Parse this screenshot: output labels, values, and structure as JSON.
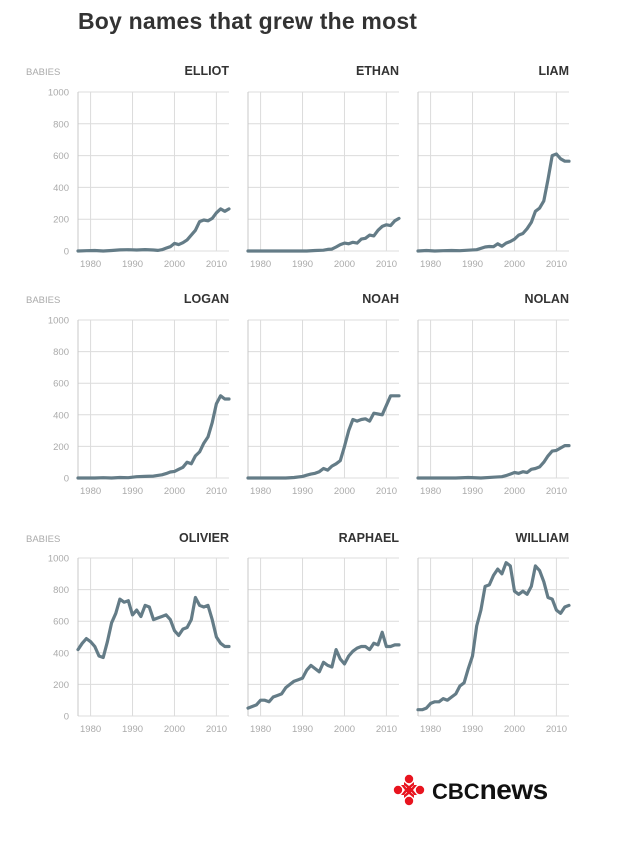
{
  "title": "Boy names that grew the most",
  "axis_label": "BABIES",
  "brand": {
    "prefix": "CBC",
    "suffix": "news",
    "gem_color": "#e8141f"
  },
  "colors": {
    "line": "#647c87",
    "grid": "#dcdcdc",
    "frame": "#c8c8c8"
  },
  "chart_data": [
    {
      "type": "line",
      "title": "ELLIOT",
      "ylabel": "BABIES",
      "xlim": [
        1977,
        2013
      ],
      "ylim": [
        0,
        1000
      ],
      "xticks": [
        1980,
        1990,
        2000,
        2010
      ],
      "yticks": [
        0,
        200,
        400,
        600,
        800,
        1000
      ],
      "series": [
        {
          "x": [
            1977,
            1979,
            1981,
            1983,
            1985,
            1987,
            1989,
            1991,
            1993,
            1995,
            1996,
            1997,
            1998,
            1999,
            2000,
            2001,
            2002,
            2003,
            2004,
            2005,
            2006,
            2007,
            2008,
            2009,
            2010,
            2011,
            2012,
            2013
          ],
          "y": [
            0,
            2,
            3,
            0,
            3,
            7,
            8,
            6,
            9,
            6,
            4,
            8,
            18,
            27,
            48,
            40,
            52,
            70,
            100,
            130,
            185,
            195,
            190,
            205,
            240,
            265,
            250,
            265
          ]
        }
      ]
    },
    {
      "type": "line",
      "title": "ETHAN",
      "ylabel": "BABIES",
      "xlim": [
        1977,
        2013
      ],
      "ylim": [
        0,
        1000
      ],
      "xticks": [
        1980,
        1990,
        2000,
        2010
      ],
      "yticks": [
        0,
        200,
        400,
        600,
        800,
        1000
      ],
      "series": [
        {
          "x": [
            1977,
            1980,
            1983,
            1986,
            1989,
            1991,
            1993,
            1995,
            1996,
            1997,
            1998,
            1999,
            2000,
            2001,
            2002,
            2003,
            2004,
            2005,
            2006,
            2007,
            2008,
            2009,
            2010,
            2011,
            2012,
            2013
          ],
          "y": [
            0,
            0,
            0,
            0,
            0,
            0,
            3,
            5,
            10,
            12,
            25,
            40,
            50,
            45,
            55,
            50,
            75,
            80,
            100,
            95,
            130,
            155,
            165,
            160,
            190,
            205
          ]
        }
      ]
    },
    {
      "type": "line",
      "title": "LIAM",
      "ylabel": "BABIES",
      "xlim": [
        1977,
        2013
      ],
      "ylim": [
        0,
        1000
      ],
      "xticks": [
        1980,
        1990,
        2000,
        2010
      ],
      "yticks": [
        0,
        200,
        400,
        600,
        800,
        1000
      ],
      "series": [
        {
          "x": [
            1977,
            1979,
            1981,
            1983,
            1985,
            1987,
            1989,
            1991,
            1993,
            1994,
            1995,
            1996,
            1997,
            1998,
            1999,
            2000,
            2001,
            2002,
            2003,
            2004,
            2005,
            2006,
            2007,
            2008,
            2009,
            2010,
            2011,
            2012,
            2013
          ],
          "y": [
            0,
            3,
            0,
            2,
            3,
            2,
            5,
            8,
            25,
            28,
            27,
            45,
            30,
            50,
            60,
            75,
            100,
            110,
            140,
            180,
            250,
            270,
            315,
            450,
            600,
            610,
            580,
            565,
            565
          ]
        }
      ]
    },
    {
      "type": "line",
      "title": "LOGAN",
      "ylabel": "BABIES",
      "xlim": [
        1977,
        2013
      ],
      "ylim": [
        0,
        1000
      ],
      "xticks": [
        1980,
        1990,
        2000,
        2010
      ],
      "yticks": [
        0,
        200,
        400,
        600,
        800,
        1000
      ],
      "series": [
        {
          "x": [
            1977,
            1979,
            1981,
            1983,
            1985,
            1987,
            1989,
            1991,
            1993,
            1995,
            1997,
            1998,
            1999,
            2000,
            2001,
            2002,
            2003,
            2004,
            2005,
            2006,
            2007,
            2008,
            2009,
            2010,
            2011,
            2012,
            2013
          ],
          "y": [
            0,
            0,
            0,
            2,
            0,
            3,
            2,
            8,
            10,
            12,
            20,
            28,
            38,
            42,
            55,
            68,
            100,
            90,
            140,
            165,
            220,
            260,
            350,
            470,
            520,
            500,
            500
          ]
        }
      ]
    },
    {
      "type": "line",
      "title": "NOAH",
      "ylabel": "BABIES",
      "xlim": [
        1977,
        2013
      ],
      "ylim": [
        0,
        1000
      ],
      "xticks": [
        1980,
        1990,
        2000,
        2010
      ],
      "yticks": [
        0,
        200,
        400,
        600,
        800,
        1000
      ],
      "series": [
        {
          "x": [
            1977,
            1980,
            1983,
            1986,
            1988,
            1990,
            1991,
            1992,
            1993,
            1994,
            1995,
            1996,
            1997,
            1998,
            1999,
            2000,
            2001,
            2002,
            2003,
            2004,
            2005,
            2006,
            2007,
            2008,
            2009,
            2010,
            2011,
            2012,
            2013
          ],
          "y": [
            0,
            0,
            0,
            0,
            3,
            10,
            18,
            25,
            30,
            40,
            60,
            50,
            75,
            90,
            110,
            200,
            300,
            370,
            360,
            370,
            375,
            360,
            410,
            405,
            400,
            460,
            520,
            520,
            520
          ]
        }
      ]
    },
    {
      "type": "line",
      "title": "NOLAN",
      "ylabel": "BABIES",
      "xlim": [
        1977,
        2013
      ],
      "ylim": [
        0,
        1000
      ],
      "xticks": [
        1980,
        1990,
        2000,
        2010
      ],
      "yticks": [
        0,
        200,
        400,
        600,
        800,
        1000
      ],
      "series": [
        {
          "x": [
            1977,
            1980,
            1983,
            1986,
            1989,
            1992,
            1995,
            1997,
            1998,
            1999,
            2000,
            2001,
            2002,
            2003,
            2004,
            2005,
            2006,
            2007,
            2008,
            2009,
            2010,
            2011,
            2012,
            2013
          ],
          "y": [
            0,
            0,
            0,
            0,
            3,
            0,
            5,
            8,
            15,
            25,
            35,
            30,
            40,
            35,
            55,
            60,
            70,
            100,
            140,
            170,
            175,
            190,
            205,
            205
          ]
        }
      ]
    },
    {
      "type": "line",
      "title": "OLIVIER",
      "ylabel": "BABIES",
      "xlim": [
        1977,
        2013
      ],
      "ylim": [
        0,
        1000
      ],
      "xticks": [
        1980,
        1990,
        2000,
        2010
      ],
      "yticks": [
        0,
        200,
        400,
        600,
        800,
        1000
      ],
      "series": [
        {
          "x": [
            1977,
            1978,
            1979,
            1980,
            1981,
            1982,
            1983,
            1984,
            1985,
            1986,
            1987,
            1988,
            1989,
            1990,
            1991,
            1992,
            1993,
            1994,
            1995,
            1996,
            1997,
            1998,
            1999,
            2000,
            2001,
            2002,
            2003,
            2004,
            2005,
            2006,
            2007,
            2008,
            2009,
            2010,
            2011,
            2012,
            2013
          ],
          "y": [
            420,
            460,
            490,
            470,
            440,
            380,
            370,
            470,
            590,
            650,
            740,
            720,
            730,
            640,
            670,
            630,
            700,
            690,
            610,
            620,
            630,
            640,
            610,
            540,
            510,
            550,
            560,
            610,
            750,
            700,
            690,
            700,
            610,
            500,
            460,
            440,
            440
          ]
        }
      ]
    },
    {
      "type": "line",
      "title": "RAPHAEL",
      "ylabel": "BABIES",
      "xlim": [
        1977,
        2013
      ],
      "ylim": [
        0,
        1000
      ],
      "xticks": [
        1980,
        1990,
        2000,
        2010
      ],
      "yticks": [
        0,
        200,
        400,
        600,
        800,
        1000
      ],
      "series": [
        {
          "x": [
            1977,
            1978,
            1979,
            1980,
            1981,
            1982,
            1983,
            1984,
            1985,
            1986,
            1987,
            1988,
            1989,
            1990,
            1991,
            1992,
            1993,
            1994,
            1995,
            1996,
            1997,
            1998,
            1999,
            2000,
            2001,
            2002,
            2003,
            2004,
            2005,
            2006,
            2007,
            2008,
            2009,
            2010,
            2011,
            2012,
            2013
          ],
          "y": [
            50,
            60,
            70,
            100,
            100,
            90,
            120,
            130,
            140,
            180,
            200,
            220,
            230,
            240,
            290,
            320,
            300,
            280,
            340,
            320,
            310,
            420,
            360,
            330,
            380,
            410,
            430,
            440,
            440,
            420,
            460,
            450,
            530,
            440,
            440,
            450,
            450
          ]
        }
      ]
    },
    {
      "type": "line",
      "title": "WILLIAM",
      "ylabel": "BABIES",
      "xlim": [
        1977,
        2013
      ],
      "ylim": [
        0,
        1000
      ],
      "xticks": [
        1980,
        1990,
        2000,
        2010
      ],
      "yticks": [
        0,
        200,
        400,
        600,
        800,
        1000
      ],
      "series": [
        {
          "x": [
            1977,
            1978,
            1979,
            1980,
            1981,
            1982,
            1983,
            1984,
            1985,
            1986,
            1987,
            1988,
            1989,
            1990,
            1991,
            1992,
            1993,
            1994,
            1995,
            1996,
            1997,
            1998,
            1999,
            2000,
            2001,
            2002,
            2003,
            2004,
            2005,
            2006,
            2007,
            2008,
            2009,
            2010,
            2011,
            2012,
            2013
          ],
          "y": [
            40,
            40,
            50,
            80,
            90,
            90,
            110,
            100,
            120,
            140,
            190,
            210,
            300,
            380,
            570,
            670,
            820,
            830,
            890,
            930,
            900,
            970,
            950,
            790,
            770,
            790,
            770,
            820,
            950,
            920,
            850,
            750,
            740,
            670,
            650,
            690,
            700
          ]
        }
      ]
    }
  ]
}
